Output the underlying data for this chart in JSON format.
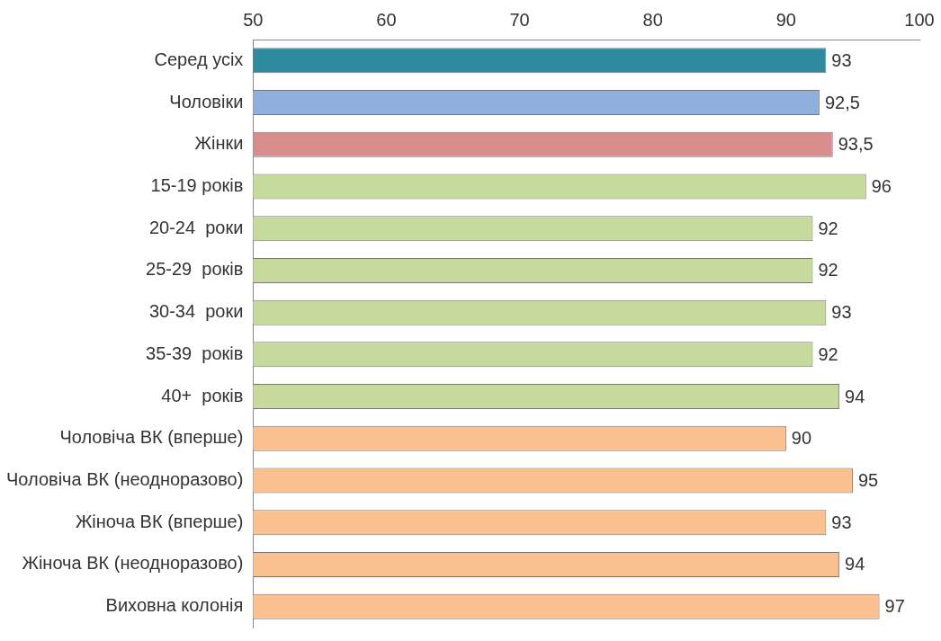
{
  "chart_data": {
    "type": "bar",
    "orientation": "horizontal",
    "categories": [
      "Серед усіх",
      "Чоловіки",
      "Жінки",
      "15-19 років",
      "20-24  роки",
      "25-29  років",
      "30-34  роки",
      "35-39  років",
      "40+  років",
      "Чоловіча ВК (вперше)",
      "Чоловіча ВК (неодноразово)",
      "Жіноча ВК (вперше)",
      "Жіноча ВК (неодноразово)",
      "Виховна колонія"
    ],
    "values": [
      93,
      92.5,
      93.5,
      96,
      92,
      92,
      93,
      92,
      94,
      90,
      95,
      93,
      94,
      97
    ],
    "value_labels": [
      "93",
      "92,5",
      "93,5",
      "96",
      "92",
      "92",
      "93",
      "92",
      "94",
      "90",
      "95",
      "93",
      "94",
      "97"
    ],
    "colors": [
      "#2e8b9f",
      "#8fb0dc",
      "#d98e8e",
      "#c5da9c",
      "#c5da9c",
      "#c5da9c",
      "#c5da9c",
      "#c5da9c",
      "#c5da9c",
      "#fbc08f",
      "#fbc08f",
      "#fbc08f",
      "#fbc08f",
      "#fbc08f"
    ],
    "xlim": [
      50,
      100
    ],
    "xticks": [
      50,
      60,
      70,
      80,
      90,
      100
    ],
    "grid": false,
    "legend": false
  }
}
